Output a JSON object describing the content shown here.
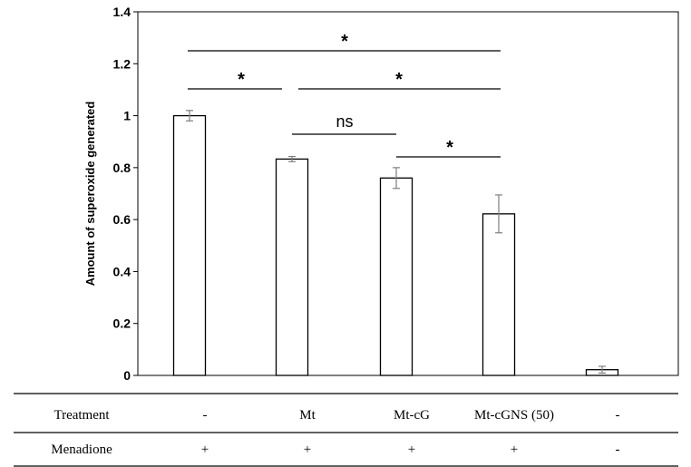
{
  "chart_data": {
    "type": "bar",
    "ylabel": "Amount of superoxide generated",
    "ylim": [
      0,
      1.4
    ],
    "yticks": [
      "0",
      "0.2",
      "0.4",
      "0.6",
      "0.8",
      "1",
      "1.2",
      "1.4"
    ],
    "ytick_values": [
      0,
      0.2,
      0.4,
      0.6,
      0.8,
      1.0,
      1.2,
      1.4
    ],
    "grid": false,
    "values": [
      1.0,
      0.833,
      0.76,
      0.622,
      0.022
    ],
    "errors": [
      0.02,
      0.01,
      0.04,
      0.073,
      0.013
    ],
    "significance": [
      {
        "from": 0,
        "to": 3,
        "label": "*"
      },
      {
        "from": 0,
        "to": 1,
        "label": "*"
      },
      {
        "from": 1,
        "to": 3,
        "label": "*"
      },
      {
        "from": 1,
        "to": 2,
        "label": "ns"
      },
      {
        "from": 2,
        "to": 3,
        "label": "*"
      }
    ]
  },
  "table": {
    "rows": [
      {
        "label": "Treatment",
        "cells": [
          "-",
          "Mt",
          "Mt-cG",
          "Mt-cGNS (50)",
          "-"
        ]
      },
      {
        "label": "Menadione",
        "cells": [
          "+",
          "+",
          "+",
          "+",
          "-"
        ]
      }
    ]
  }
}
